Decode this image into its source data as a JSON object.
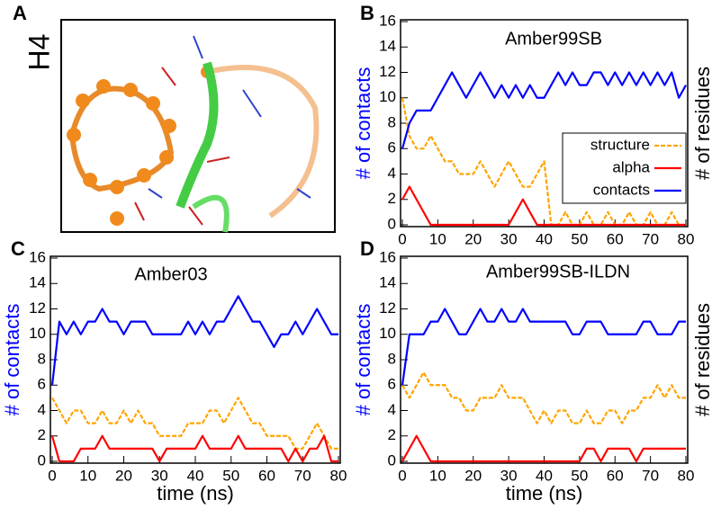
{
  "figure": {
    "panel_a_label": "A",
    "panel_a_text": "H4"
  },
  "chart_data": [
    {
      "type": "line",
      "panel_label": "B",
      "title": "Amber99SB",
      "ylabel": "# of contacts",
      "y2label": "# of residues",
      "xlim": [
        0,
        80
      ],
      "xticks": [
        0,
        10,
        20,
        30,
        40,
        50,
        60,
        70,
        80
      ],
      "ylim": [
        0,
        16
      ],
      "yticks": [
        0,
        2,
        4,
        6,
        8,
        10,
        12,
        14,
        16
      ],
      "legend": "right",
      "x": [
        0,
        2,
        4,
        6,
        8,
        10,
        12,
        14,
        16,
        18,
        20,
        22,
        24,
        26,
        28,
        30,
        32,
        34,
        36,
        38,
        40,
        42,
        44,
        46,
        48,
        50,
        52,
        54,
        56,
        58,
        60,
        62,
        64,
        66,
        68,
        70,
        72,
        74,
        76,
        78,
        80
      ],
      "series": [
        {
          "name": "structure",
          "color": "#ffa500",
          "dashed": true,
          "values": [
            10,
            7,
            6,
            6,
            7,
            6,
            5,
            5,
            4,
            4,
            4,
            5,
            4,
            3,
            4,
            5,
            4,
            3,
            3,
            4,
            5,
            0,
            0,
            1,
            0,
            0,
            1,
            0,
            0,
            1,
            0,
            0,
            1,
            0,
            0,
            1,
            0,
            0,
            1,
            0,
            0
          ]
        },
        {
          "name": "alpha",
          "color": "#ff0000",
          "values": [
            2,
            3,
            2,
            1,
            0,
            0,
            0,
            0,
            0,
            0,
            0,
            0,
            0,
            0,
            0,
            0,
            1,
            2,
            1,
            0,
            0,
            0,
            0,
            0,
            0,
            0,
            0,
            0,
            0,
            0,
            0,
            0,
            0,
            0,
            0,
            0,
            0,
            0,
            0,
            0,
            0
          ]
        },
        {
          "name": "contacts",
          "color": "#0000ff",
          "values": [
            6,
            8,
            9,
            9,
            9,
            10,
            11,
            12,
            11,
            10,
            11,
            12,
            11,
            10,
            11,
            10,
            11,
            10,
            11,
            10,
            10,
            11,
            12,
            11,
            12,
            11,
            11,
            12,
            12,
            11,
            12,
            11,
            12,
            11,
            12,
            11,
            12,
            11,
            12,
            10,
            11
          ]
        }
      ]
    },
    {
      "type": "line",
      "panel_label": "C",
      "title": "Amber03",
      "ylabel": "# of contacts",
      "xlabel": "time (ns)",
      "xlim": [
        0,
        80
      ],
      "xticks": [
        0,
        10,
        20,
        30,
        40,
        50,
        60,
        70,
        80
      ],
      "ylim": [
        0,
        16
      ],
      "yticks": [
        0,
        2,
        4,
        6,
        8,
        10,
        12,
        14,
        16
      ],
      "x": [
        0,
        2,
        4,
        6,
        8,
        10,
        12,
        14,
        16,
        18,
        20,
        22,
        24,
        26,
        28,
        30,
        32,
        34,
        36,
        38,
        40,
        42,
        44,
        46,
        48,
        50,
        52,
        54,
        56,
        58,
        60,
        62,
        64,
        66,
        68,
        70,
        72,
        74,
        76,
        78,
        80
      ],
      "series": [
        {
          "color": "#ffa500",
          "dashed": true,
          "values": [
            5,
            4,
            3,
            4,
            4,
            3,
            3,
            4,
            3,
            3,
            4,
            3,
            4,
            3,
            3,
            2,
            2,
            2,
            2,
            3,
            3,
            3,
            4,
            4,
            3,
            4,
            5,
            4,
            3,
            3,
            2,
            2,
            2,
            2,
            1,
            1,
            2,
            3,
            2,
            1,
            1
          ]
        },
        {
          "color": "#ff0000",
          "values": [
            2,
            0,
            0,
            0,
            1,
            1,
            1,
            2,
            1,
            1,
            1,
            1,
            1,
            1,
            1,
            0,
            1,
            1,
            1,
            1,
            1,
            2,
            1,
            1,
            1,
            1,
            2,
            1,
            1,
            1,
            1,
            1,
            1,
            0,
            1,
            0,
            1,
            1,
            2,
            0,
            0
          ]
        },
        {
          "color": "#0000ff",
          "values": [
            6,
            11,
            10,
            11,
            10,
            11,
            11,
            12,
            11,
            11,
            10,
            11,
            11,
            11,
            10,
            10,
            10,
            10,
            10,
            11,
            10,
            11,
            10,
            11,
            11,
            12,
            13,
            12,
            11,
            11,
            10,
            9,
            10,
            10,
            11,
            10,
            11,
            12,
            11,
            10,
            10
          ]
        }
      ]
    },
    {
      "type": "line",
      "panel_label": "D",
      "title": "Amber99SB-ILDN",
      "ylabel": "# of contacts",
      "y2label": "# of residues",
      "xlabel": "time (ns)",
      "xlim": [
        0,
        80
      ],
      "xticks": [
        0,
        10,
        20,
        30,
        40,
        50,
        60,
        70,
        80
      ],
      "ylim": [
        0,
        16
      ],
      "yticks": [
        0,
        2,
        4,
        6,
        8,
        10,
        12,
        14,
        16
      ],
      "x": [
        0,
        2,
        4,
        6,
        8,
        10,
        12,
        14,
        16,
        18,
        20,
        22,
        24,
        26,
        28,
        30,
        32,
        34,
        36,
        38,
        40,
        42,
        44,
        46,
        48,
        50,
        52,
        54,
        56,
        58,
        60,
        62,
        64,
        66,
        68,
        70,
        72,
        74,
        76,
        78,
        80
      ],
      "series": [
        {
          "color": "#ffa500",
          "dashed": true,
          "values": [
            6,
            5,
            6,
            7,
            6,
            6,
            6,
            5,
            5,
            4,
            4,
            5,
            5,
            5,
            6,
            5,
            5,
            5,
            4,
            3,
            4,
            3,
            4,
            4,
            3,
            3,
            4,
            3,
            3,
            4,
            4,
            3,
            4,
            4,
            5,
            5,
            6,
            5,
            6,
            5,
            5
          ]
        },
        {
          "color": "#ff0000",
          "values": [
            0,
            1,
            2,
            1,
            0,
            0,
            0,
            0,
            0,
            0,
            0,
            0,
            0,
            0,
            0,
            0,
            0,
            0,
            0,
            0,
            0,
            0,
            0,
            0,
            0,
            0,
            1,
            1,
            0,
            1,
            1,
            1,
            1,
            0,
            1,
            1,
            1,
            1,
            1,
            1,
            1
          ]
        },
        {
          "color": "#0000ff",
          "values": [
            6,
            10,
            10,
            10,
            11,
            11,
            12,
            11,
            10,
            10,
            11,
            12,
            11,
            11,
            12,
            11,
            11,
            12,
            11,
            11,
            11,
            11,
            11,
            11,
            10,
            10,
            11,
            11,
            11,
            10,
            10,
            10,
            10,
            10,
            11,
            11,
            10,
            10,
            10,
            11,
            11
          ]
        }
      ]
    }
  ]
}
